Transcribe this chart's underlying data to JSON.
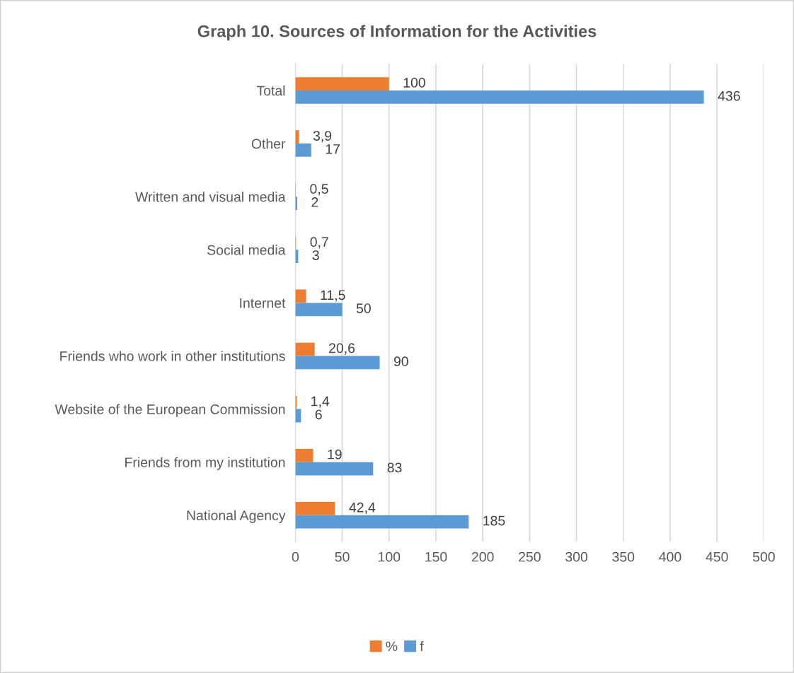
{
  "chart_data": {
    "type": "bar",
    "orientation": "horizontal",
    "title": "Graph 10. Sources of Information for the Activities",
    "categories": [
      "Total",
      "Other",
      "Written and visual media",
      "Social media",
      "Internet",
      "Friends who work in other institutions",
      "Website of the European Commission",
      "Friends from my institution",
      "National Agency"
    ],
    "series": [
      {
        "name": "%",
        "color": "#ed7d31",
        "values": [
          100,
          3.9,
          0.5,
          0.7,
          11.5,
          20.6,
          1.4,
          19,
          42.4
        ],
        "value_labels": [
          "100",
          "3,9",
          "0,5",
          "0,7",
          "11,5",
          "20,6",
          "1,4",
          "19",
          "42,4"
        ]
      },
      {
        "name": "f",
        "color": "#5b9bd5",
        "values": [
          436,
          17,
          2,
          3,
          50,
          90,
          6,
          83,
          185
        ],
        "value_labels": [
          "436",
          "17",
          "2",
          "3",
          "50",
          "90",
          "6",
          "83",
          "185"
        ]
      }
    ],
    "xlim": [
      0,
      500
    ],
    "xticks": [
      0,
      50,
      100,
      150,
      200,
      250,
      300,
      350,
      400,
      450,
      500
    ],
    "grid": "x",
    "legend": "bottom"
  }
}
